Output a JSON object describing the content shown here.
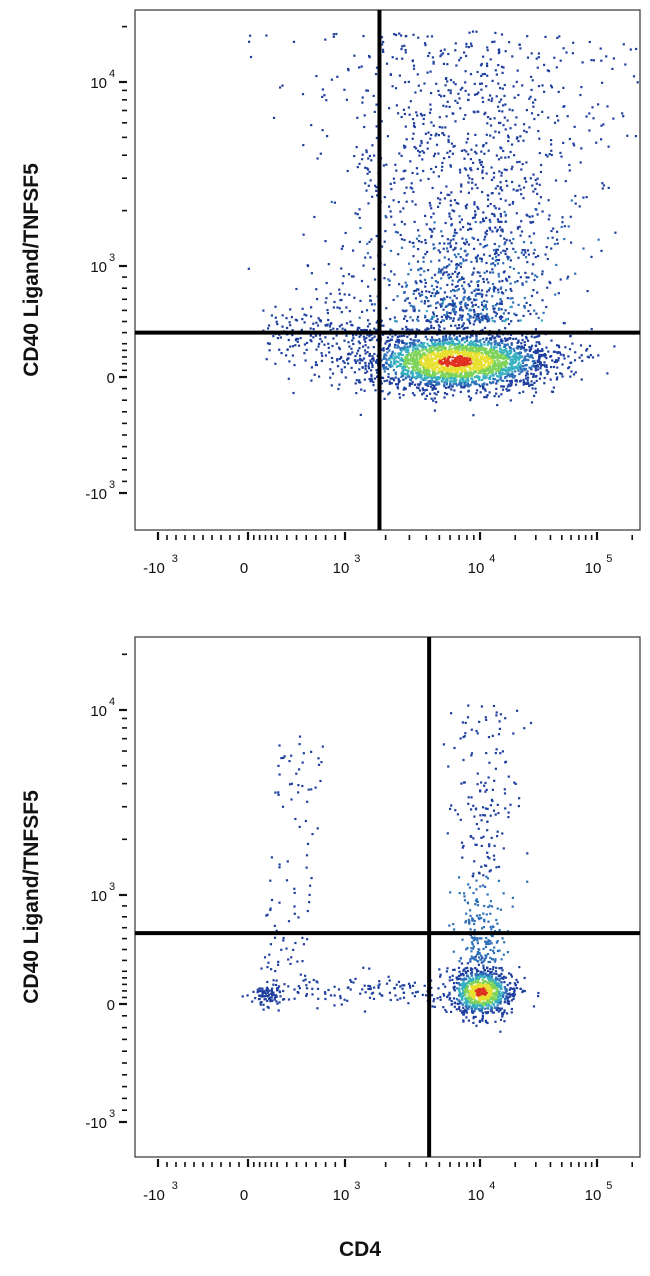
{
  "chart_data": [
    {
      "type": "scatter",
      "style": "flow-cytometry pseudocolor density plot",
      "xlabel": "",
      "ylabel": "CD40 Ligand/TNFSF5",
      "x_scale": "biexponential",
      "y_scale": "biexponential",
      "x_ticks": [
        {
          "value": -1000,
          "label": "-10",
          "exp": "3"
        },
        {
          "value": 0,
          "label": "0",
          "exp": ""
        },
        {
          "value": 1000,
          "label": "10",
          "exp": "3"
        },
        {
          "value": 10000,
          "label": "10",
          "exp": "4"
        },
        {
          "value": 100000,
          "label": "10",
          "exp": "5"
        }
      ],
      "y_ticks": [
        {
          "value": 10000,
          "label": "10",
          "exp": "4"
        },
        {
          "value": 1000,
          "label": "10",
          "exp": "3"
        },
        {
          "value": 0,
          "label": "0",
          "exp": ""
        },
        {
          "value": -1000,
          "label": "-10",
          "exp": "3"
        }
      ],
      "quadrant_gate": {
        "x": 1800,
        "y": 400
      },
      "populations": [
        {
          "name": "CD4+ CD40L- cluster",
          "center": {
            "x": 6500,
            "y": 150
          },
          "density": "high"
        },
        {
          "name": "CD4+ CD40L+ tail",
          "x_range": [
            1800,
            30000
          ],
          "y_range": [
            400,
            20000
          ],
          "density": "moderate"
        },
        {
          "name": "CD4- scatter",
          "x_range": [
            200,
            1800
          ],
          "y_range": [
            0,
            400
          ],
          "density": "low"
        }
      ],
      "colors": {
        "low": "#1f3f9f",
        "mid": "#37b0c0",
        "high": "#e8e030",
        "peak": "#e03020"
      }
    },
    {
      "type": "scatter",
      "style": "flow-cytometry pseudocolor density plot",
      "xlabel": "CD4",
      "ylabel": "CD40 Ligand/TNFSF5",
      "x_scale": "biexponential",
      "y_scale": "biexponential",
      "x_ticks": [
        {
          "value": -1000,
          "label": "-10",
          "exp": "3"
        },
        {
          "value": 0,
          "label": "0",
          "exp": ""
        },
        {
          "value": 1000,
          "label": "10",
          "exp": "3"
        },
        {
          "value": 10000,
          "label": "10",
          "exp": "4"
        },
        {
          "value": 100000,
          "label": "10",
          "exp": "5"
        }
      ],
      "y_ticks": [
        {
          "value": 10000,
          "label": "10",
          "exp": "4"
        },
        {
          "value": 1000,
          "label": "10",
          "exp": "3"
        },
        {
          "value": 0,
          "label": "0",
          "exp": ""
        },
        {
          "value": -1000,
          "label": "-10",
          "exp": "3"
        }
      ],
      "quadrant_gate": {
        "x": 4200,
        "y": 650
      },
      "populations": [
        {
          "name": "CD4+ CD40L- cluster",
          "center": {
            "x": 10000,
            "y": 120
          },
          "density": "high"
        },
        {
          "name": "CD4+ CD40L+ column",
          "x_range": [
            7000,
            15000
          ],
          "y_range": [
            650,
            8000
          ],
          "density": "low"
        },
        {
          "name": "CD4- cluster",
          "center": {
            "x": 80,
            "y": 100
          },
          "density": "low"
        },
        {
          "name": "CD4- CD40L+ column",
          "x_range": [
            100,
            800
          ],
          "y_range": [
            650,
            7000
          ],
          "density": "low"
        }
      ],
      "colors": {
        "low": "#1f3f9f",
        "mid": "#37b0c0",
        "high": "#e8e030",
        "peak": "#e03020"
      }
    }
  ]
}
